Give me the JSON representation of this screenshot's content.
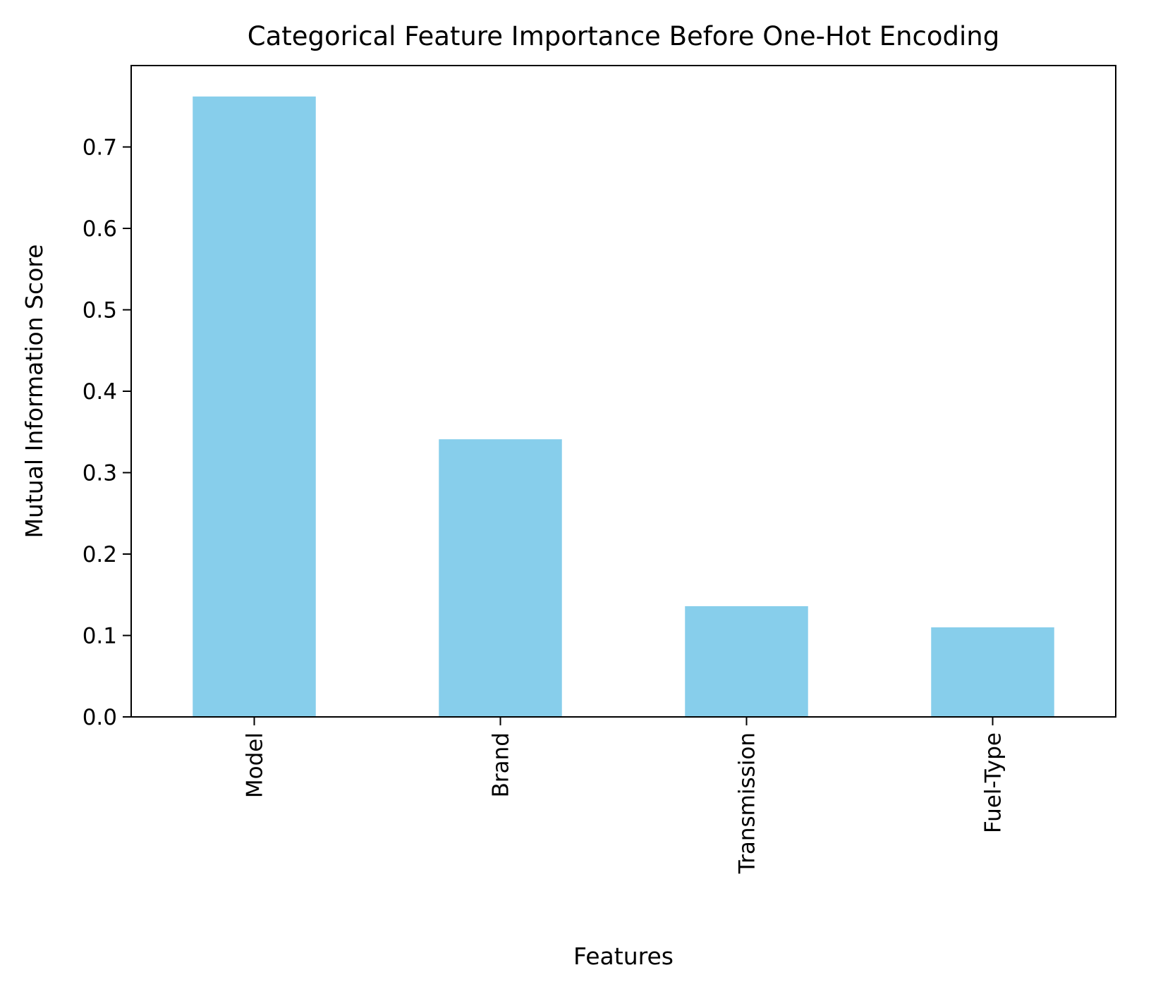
{
  "chart_data": {
    "type": "bar",
    "title": "Categorical Feature Importance Before One-Hot Encoding",
    "xlabel": "Features",
    "ylabel": "Mutual Information Score",
    "categories": [
      "Model",
      "Brand",
      "Transmission",
      "Fuel-Type"
    ],
    "values": [
      0.762,
      0.341,
      0.136,
      0.11
    ],
    "ylim": [
      0,
      0.8
    ],
    "yticks": [
      0.0,
      0.1,
      0.2,
      0.3,
      0.4,
      0.5,
      0.6,
      0.7
    ],
    "ytick_labels": [
      "0.0",
      "0.1",
      "0.2",
      "0.3",
      "0.4",
      "0.5",
      "0.6",
      "0.7"
    ],
    "xtick_rotation": "vertical",
    "grid": false,
    "legend": null,
    "colors": {
      "bar": "#87ceeb",
      "axis": "#000000",
      "background": "#ffffff"
    }
  }
}
